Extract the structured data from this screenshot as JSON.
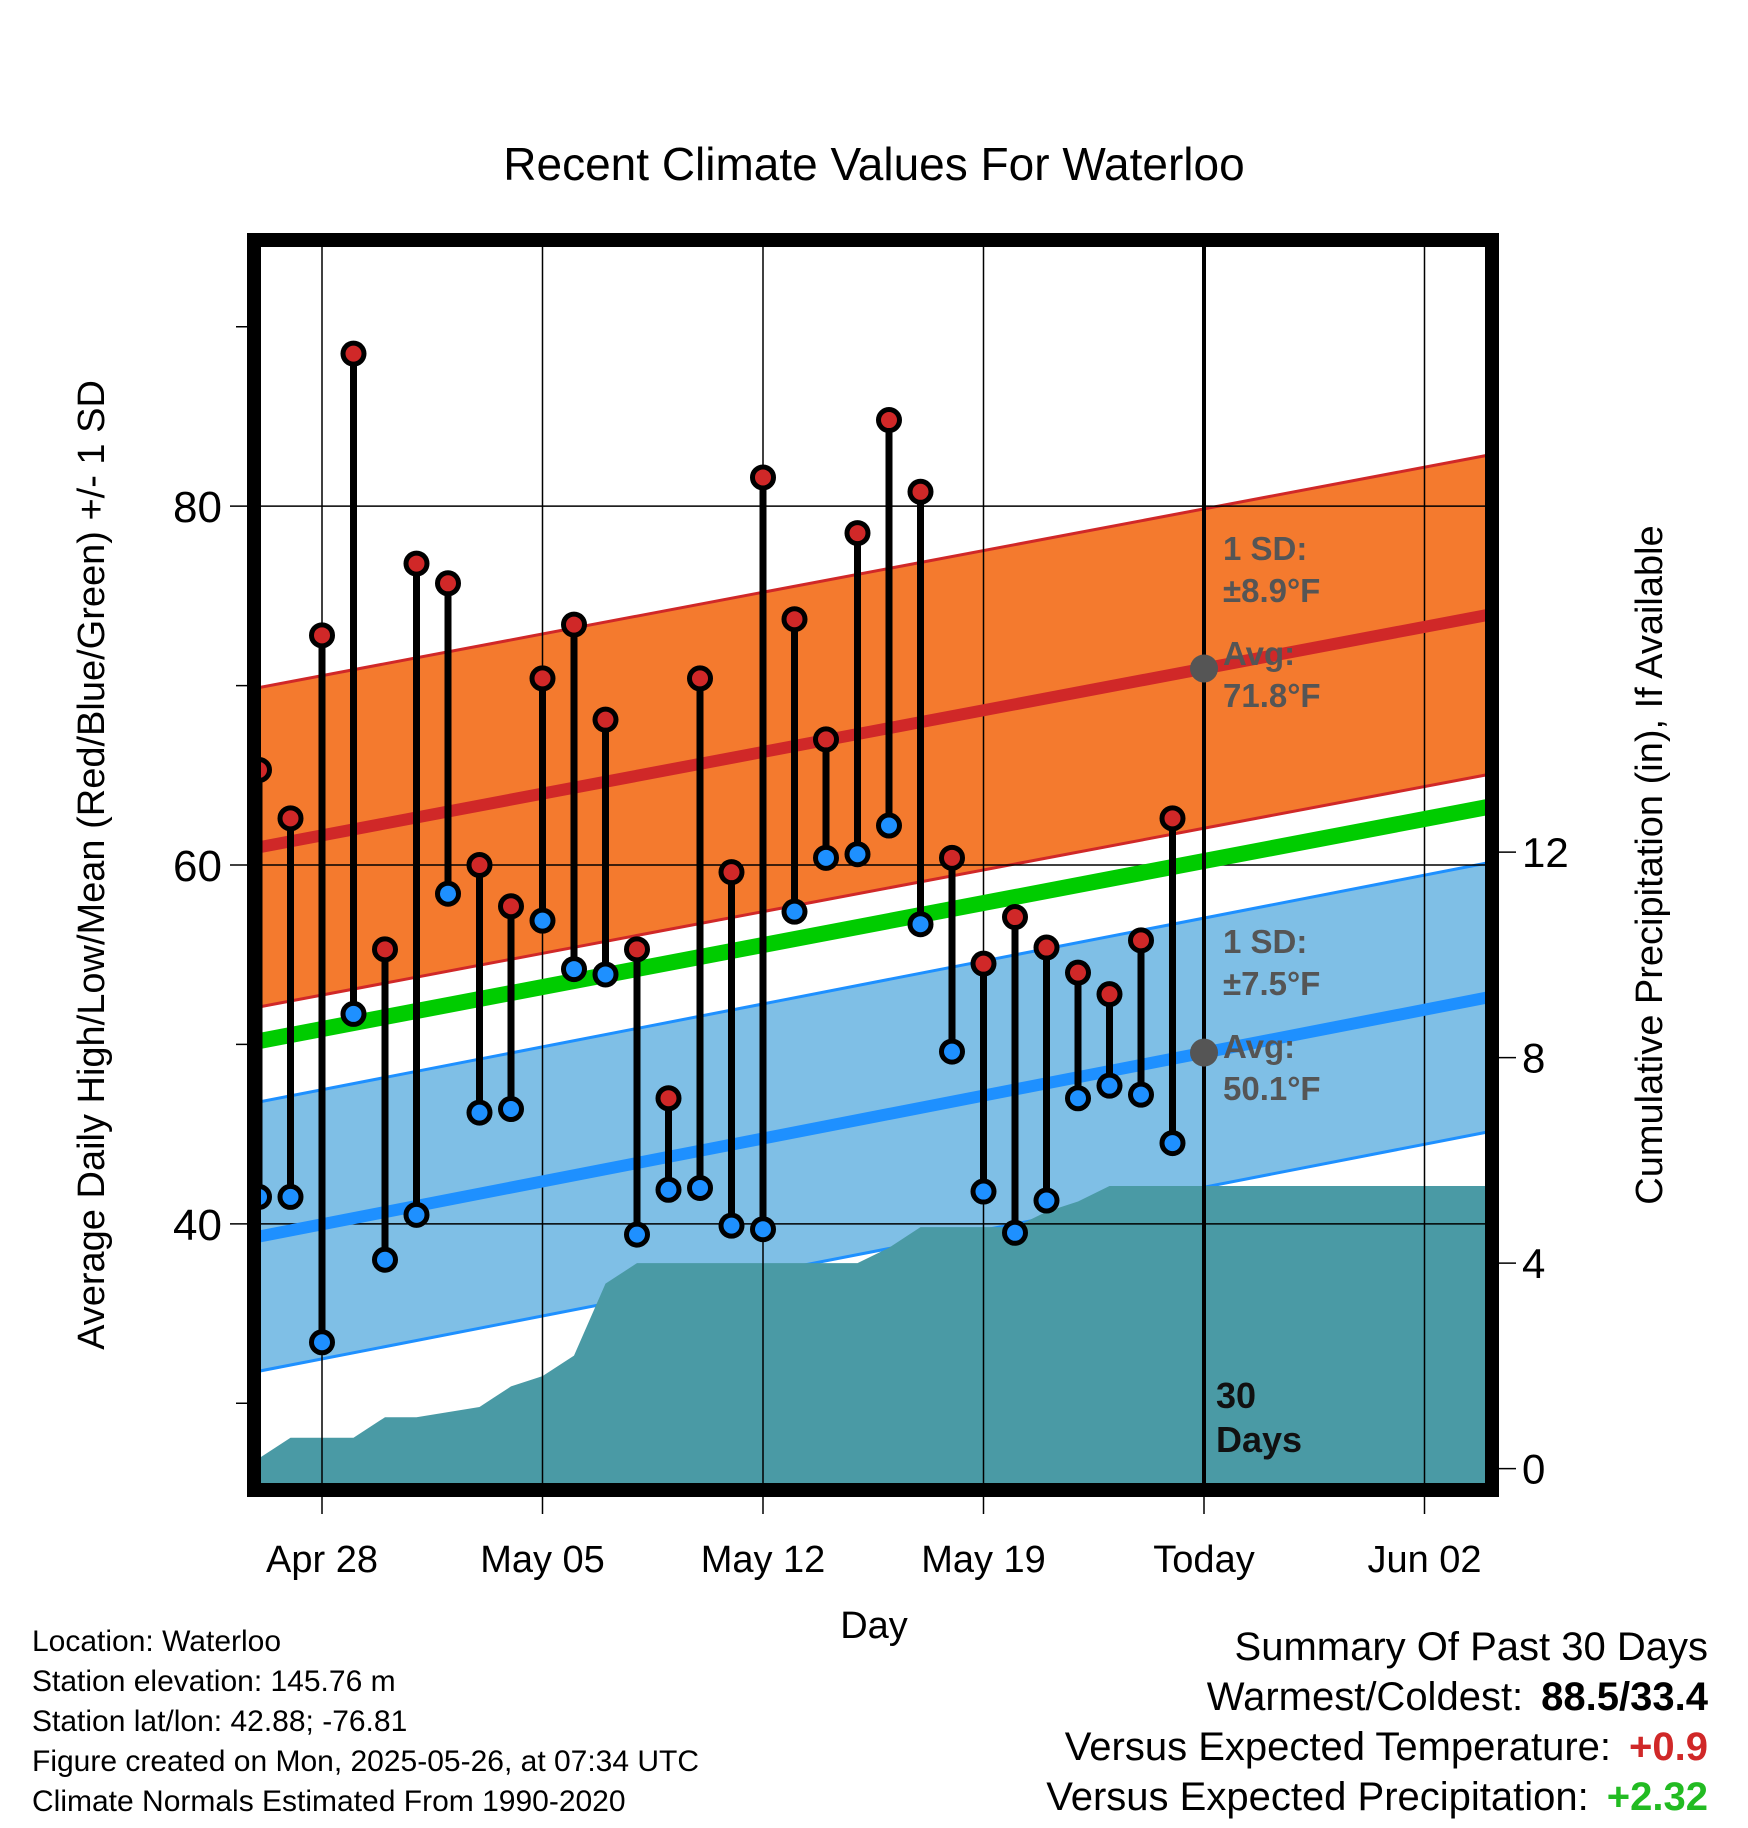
{
  "chart_data": {
    "type": "line",
    "title": "Recent Climate Values For Waterloo",
    "xlabel": "Day",
    "ylabel_left": "Average Daily High/Low/Mean (Red/Blue/Green) +/- 1 SD",
    "ylabel_right": "Cumulative Precipitation (in), If Available",
    "x_ticks": [
      "Apr 28",
      "May 05",
      "May 12",
      "May 19",
      "Today",
      "Jun 02"
    ],
    "ylim_left": [
      25.5,
      94.5
    ],
    "left_ticks": [
      40,
      60,
      80
    ],
    "ylim_right": [
      -0.3,
      23.8
    ],
    "right_ticks": [
      0,
      4,
      8,
      12
    ],
    "today_marker": {
      "label_line1": "30",
      "label_line2": "Days"
    },
    "daily_high": [
      65.3,
      62.6,
      72.8,
      88.5,
      55.3,
      76.8,
      75.7,
      60.0,
      57.7,
      70.4,
      73.4,
      68.1,
      55.3,
      47.0,
      70.4,
      59.6,
      81.6,
      73.7,
      67.0,
      78.5,
      84.8,
      80.8,
      60.4,
      54.5,
      57.1,
      55.4,
      54.0,
      52.8,
      55.8,
      62.6
    ],
    "daily_low": [
      41.5,
      41.5,
      33.4,
      51.7,
      38.0,
      40.5,
      58.4,
      46.2,
      46.4,
      56.9,
      54.2,
      53.9,
      39.4,
      41.9,
      42.0,
      39.9,
      39.7,
      57.4,
      60.4,
      60.6,
      62.2,
      56.7,
      49.6,
      41.8,
      39.5,
      41.3,
      47.0,
      47.7,
      47.2,
      44.5
    ],
    "normal_high_start": 61.0,
    "normal_high_end": 74.6,
    "normal_low_start": 39.3,
    "normal_low_end": 53.3,
    "normal_mean_start": 50.2,
    "normal_mean_end": 63.9,
    "high_sd": 8.9,
    "low_sd": 7.5,
    "cumulative_precip": [
      0.2,
      0.6,
      0.6,
      0.6,
      1.0,
      1.0,
      1.1,
      1.2,
      1.6,
      1.8,
      2.2,
      3.6,
      4.0,
      4.0,
      4.0,
      4.0,
      4.0,
      4.0,
      4.0,
      4.0,
      4.3,
      4.7,
      4.7,
      4.7,
      4.7,
      5.0,
      5.2,
      5.5,
      5.5,
      5.5,
      5.5,
      5.5,
      5.5,
      5.5,
      5.5,
      5.5,
      5.5,
      5.5,
      5.5,
      5.5,
      5.5
    ],
    "annotations": {
      "high_sd_line1": "1 SD:",
      "high_sd_line2": "±8.9°F",
      "high_avg_line1": "Avg:",
      "high_avg_line2": "71.8°F",
      "low_sd_line1": "1 SD:",
      "low_sd_line2": "±7.5°F",
      "low_avg_line1": "Avg:",
      "low_avg_line2": "50.1°F"
    },
    "colors": {
      "high_band": "#f47a2e",
      "high_line": "#d02828",
      "low_band": "#7fbfe6",
      "low_line": "#1e90ff",
      "mean_line": "#00cc00",
      "precip": "#4a9aa5",
      "high_dot": "#d02828",
      "low_dot": "#1e90ff"
    }
  },
  "footer": {
    "location": "Location: Waterloo",
    "elevation": "Station elevation: 145.76 m",
    "latlon": "Station lat/lon: 42.88; -76.81",
    "created": "Figure created on Mon, 2025-05-26, at 07:34 UTC",
    "normals": "Climate Normals Estimated From 1990-2020"
  },
  "summary": {
    "heading": "Summary Of Past 30 Days",
    "warmest_label": "Warmest/Coldest:",
    "warmest_value": "88.5/33.4",
    "temp_label": "Versus Expected Temperature:",
    "temp_value": "+0.9",
    "precip_label": "Versus Expected Precipitation:",
    "precip_value": "+2.32",
    "temp_color": "#d02828",
    "precip_color": "#22bb22"
  }
}
